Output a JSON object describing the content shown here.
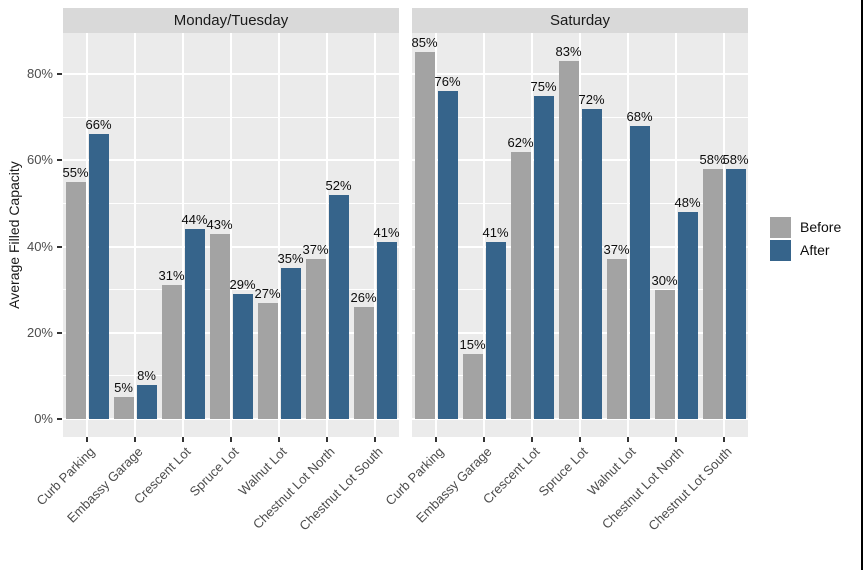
{
  "chart_data": {
    "type": "bar",
    "ylabel": "Average Filled Capacity",
    "categories": [
      "Curb Parking",
      "Embassy Garage",
      "Crescent Lot",
      "Spruce Lot",
      "Walnut Lot",
      "Chestnut Lot North",
      "Chestnut Lot South"
    ],
    "facets": [
      {
        "label": "Monday/Tuesday",
        "series": [
          {
            "name": "Before",
            "values": [
              55,
              5,
              31,
              43,
              27,
              37,
              26
            ]
          },
          {
            "name": "After",
            "values": [
              66,
              8,
              44,
              29,
              35,
              52,
              41
            ]
          }
        ]
      },
      {
        "label": "Saturday",
        "series": [
          {
            "name": "Before",
            "values": [
              85,
              15,
              62,
              83,
              37,
              30,
              58
            ]
          },
          {
            "name": "After",
            "values": [
              76,
              41,
              75,
              72,
              68,
              48,
              58
            ]
          }
        ]
      }
    ],
    "yticks": [
      0,
      20,
      40,
      60,
      80
    ],
    "ytick_labels": [
      "0%",
      "20%",
      "40%",
      "60%",
      "80%"
    ],
    "ylim": [
      0,
      90
    ],
    "value_label_suffix": "%",
    "grid": {
      "horizontal_major": [
        0,
        20,
        40,
        60,
        80
      ],
      "horizontal_minor": [
        10,
        30,
        50,
        70
      ],
      "vertical": "category centers",
      "color": "#FFFFFF"
    },
    "legend": {
      "position": "right",
      "entries": [
        {
          "label": "Before",
          "color": "#A3A3A3"
        },
        {
          "label": "After",
          "color": "#36648B"
        }
      ]
    },
    "colors": {
      "Before": "#A3A3A3",
      "After": "#36648B",
      "panel_background": "#EBEBEB",
      "strip_background": "#D9D9D9",
      "axis_text": "#4D4D4D",
      "label_text": "#0D0D0D"
    }
  }
}
